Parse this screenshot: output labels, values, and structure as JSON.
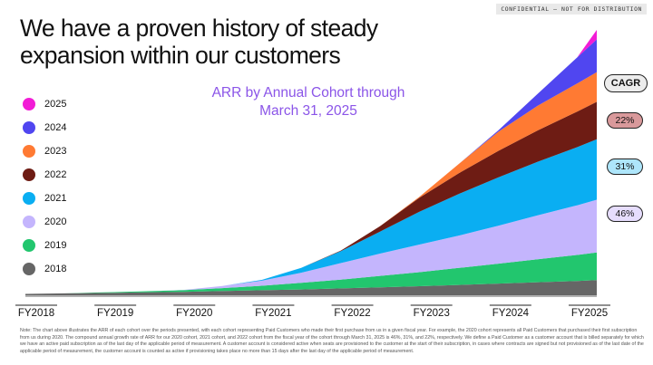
{
  "header": {
    "confidential": "CONFIDENTIAL — NOT FOR DISTRIBUTION",
    "title": "We have a proven history of steady expansion within our customers"
  },
  "chart_data": {
    "type": "area",
    "stacked": true,
    "title": "ARR by Annual Cohort through March 31, 2025",
    "xlabel": "",
    "ylabel": "",
    "x_tick_labels": [
      "FY2018",
      "FY2019",
      "FY2020",
      "FY2021",
      "FY2022",
      "FY2023",
      "FY2024",
      "FY2025"
    ],
    "x": [
      2018.0,
      2018.5,
      2019.0,
      2019.5,
      2020.0,
      2020.5,
      2021.0,
      2021.5,
      2022.0,
      2022.5,
      2023.0,
      2023.5,
      2024.0,
      2024.5,
      2025.0,
      2025.25
    ],
    "ylim": [
      0,
      100
    ],
    "grid": false,
    "legend_position": "left",
    "series": [
      {
        "name": "2018",
        "color": "#666666",
        "values": [
          0.5,
          0.7,
          0.9,
          1.1,
          1.3,
          1.6,
          1.9,
          2.2,
          2.6,
          3.0,
          3.4,
          3.9,
          4.4,
          4.9,
          5.4,
          5.7
        ]
      },
      {
        "name": "2019",
        "color": "#22c66e",
        "values": [
          0,
          0,
          0.2,
          0.4,
          0.6,
          1.1,
          1.7,
          2.5,
          3.3,
          4.3,
          5.3,
          6.4,
          7.5,
          8.7,
          9.8,
          10.4
        ]
      },
      {
        "name": "2020",
        "color": "#c4b5fd",
        "values": [
          0,
          0,
          0,
          0,
          0.1,
          0.8,
          1.9,
          3.8,
          6.2,
          8.4,
          10.4,
          12.2,
          14.3,
          16.5,
          18.7,
          19.9
        ]
      },
      {
        "name": "2021",
        "color": "#0aaef2",
        "values": [
          0,
          0,
          0,
          0,
          0,
          0,
          0.3,
          1.8,
          4.5,
          8.3,
          12.4,
          15.7,
          18.2,
          20.2,
          21.9,
          22.8
        ]
      },
      {
        "name": "2022",
        "color": "#6e1c14",
        "values": [
          0,
          0,
          0,
          0,
          0,
          0,
          0,
          0,
          0.2,
          2.0,
          5.3,
          7.8,
          10.0,
          11.8,
          13.4,
          14.1
        ]
      },
      {
        "name": "2023",
        "color": "#ff7a33",
        "values": [
          0,
          0,
          0,
          0,
          0,
          0,
          0,
          0,
          0,
          0,
          0.3,
          3.5,
          7.2,
          9.3,
          10.6,
          11.2
        ]
      },
      {
        "name": "2024",
        "color": "#5046f0",
        "values": [
          0,
          0,
          0,
          0,
          0,
          0,
          0,
          0,
          0,
          0,
          0,
          0,
          0.5,
          4.5,
          9.8,
          12.3
        ]
      },
      {
        "name": "2025",
        "color": "#f21cd6",
        "values": [
          0,
          0,
          0,
          0,
          0,
          0,
          0,
          0,
          0,
          0,
          0,
          0,
          0,
          0,
          0,
          3.6
        ]
      }
    ],
    "annotations": [
      {
        "label": "CAGR"
      },
      {
        "value": "22%",
        "series": "2022",
        "color": "#d9999b"
      },
      {
        "value": "31%",
        "series": "2021",
        "color": "#aee6fb"
      },
      {
        "value": "46%",
        "series": "2020",
        "color": "#e6ddfd"
      }
    ]
  },
  "footnote": "Note: The chart above illustrates the ARR of each cohort over the periods presented, with each cohort representing Paid Customers who made their first purchase from us in a given fiscal year. For example, the 2020 cohort represents all Paid Customers that purchased their first subscription from us during 2020. The compound annual growth rate of ARR for our 2020 cohort, 2021 cohort, and 2022 cohort from the fiscal year of the cohort through March 31, 2025 is 46%, 31%, and 22%, respectively. We define a Paid Customer as a customer account that is billed separately for which we have an active paid subscription as of the last day of the applicable period of measurement. A customer account is considered active when seats are provisioned to the customer at the start of their subscription, in cases where contracts are signed but not provisioned as of the last date of the applicable period of measurement, the customer account is counted as active if provisioning takes place no more than 15 days after the last day of the applicable period of measurement."
}
